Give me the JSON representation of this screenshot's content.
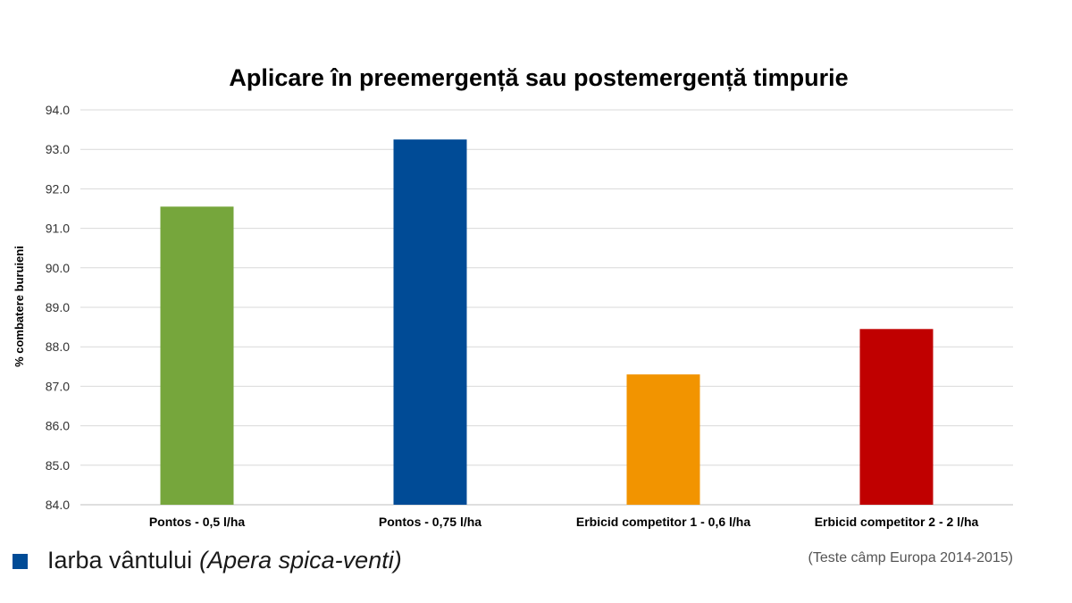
{
  "chart_data": {
    "type": "bar",
    "title": "Aplicare în preemergență sau postemergență timpurie",
    "xlabel": "",
    "ylabel": "% combatere buruieni",
    "ylim": [
      84,
      94
    ],
    "yticks": [
      "84.0",
      "85.0",
      "86.0",
      "87.0",
      "88.0",
      "89.0",
      "90.0",
      "91.0",
      "92.0",
      "93.0",
      "94.0"
    ],
    "categories": [
      "Pontos - 0,5 l/ha",
      "Pontos - 0,75 l/ha",
      "Erbicid competitor 1 - 0,6 l/ha",
      "Erbicid competitor 2 - 2 l/ha"
    ],
    "values": [
      91.55,
      93.25,
      87.3,
      88.45
    ],
    "bar_colors": [
      "#76a63c",
      "#004b96",
      "#f29400",
      "#c00000"
    ],
    "grid": true,
    "legend_position": "bottom-left"
  },
  "legend": {
    "label": "Iarba vântului",
    "label_italic": "(Apera spica-venti)",
    "color": "#004b96"
  },
  "source_note": "(Teste câmp Europa 2014-2015)"
}
